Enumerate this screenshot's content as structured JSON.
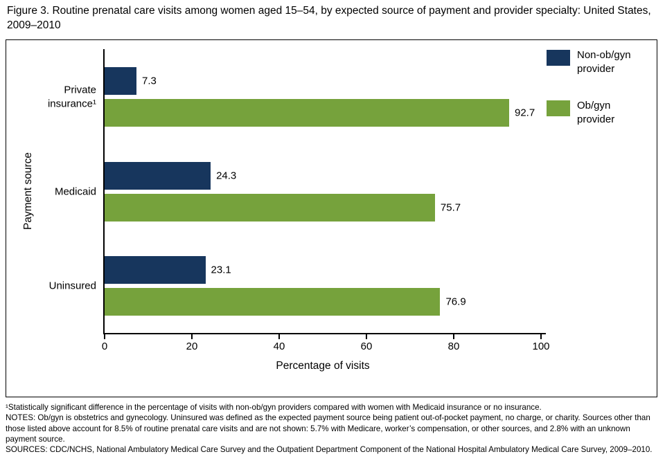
{
  "title": "Figure 3. Routine prenatal care visits among women aged 15–54, by expected source of payment and provider specialty: United States, 2009–2010",
  "chart_data": {
    "type": "bar",
    "orientation": "horizontal",
    "categories": [
      "Private insurance¹",
      "Medicaid",
      "Uninsured"
    ],
    "series": [
      {
        "name": "Non-ob/gyn provider",
        "color": "#17365d",
        "values": [
          7.3,
          24.3,
          23.1
        ]
      },
      {
        "name": "Ob/gyn provider",
        "color": "#76a23c",
        "values": [
          92.7,
          75.7,
          76.9
        ]
      }
    ],
    "xlabel": "Percentage of visits",
    "ylabel": "Payment source",
    "xlim": [
      0,
      100
    ],
    "xticks": [
      0,
      20,
      40,
      60,
      80,
      100
    ],
    "legend_position": "top-right",
    "grid": false
  },
  "footnotes": [
    "¹Statistically significant difference in the percentage of visits with non-ob/gyn providers compared with women with Medicaid insurance or no insurance.",
    "NOTES: Ob/gyn is obstetrics and gynecology. Uninsured was defined as the expected payment source being patient out-of-pocket payment, no charge, or charity. Sources other than those listed above account for 8.5% of routine prenatal care visits and are not shown: 5.7% with Medicare, worker’s compensation, or other sources, and 2.8% with an unknown payment source.",
    "SOURCES: CDC/NCHS, National Ambulatory Medical Care Survey and the Outpatient Department Component of the National Hospital Ambulatory Medical Care Survey, 2009–2010."
  ]
}
